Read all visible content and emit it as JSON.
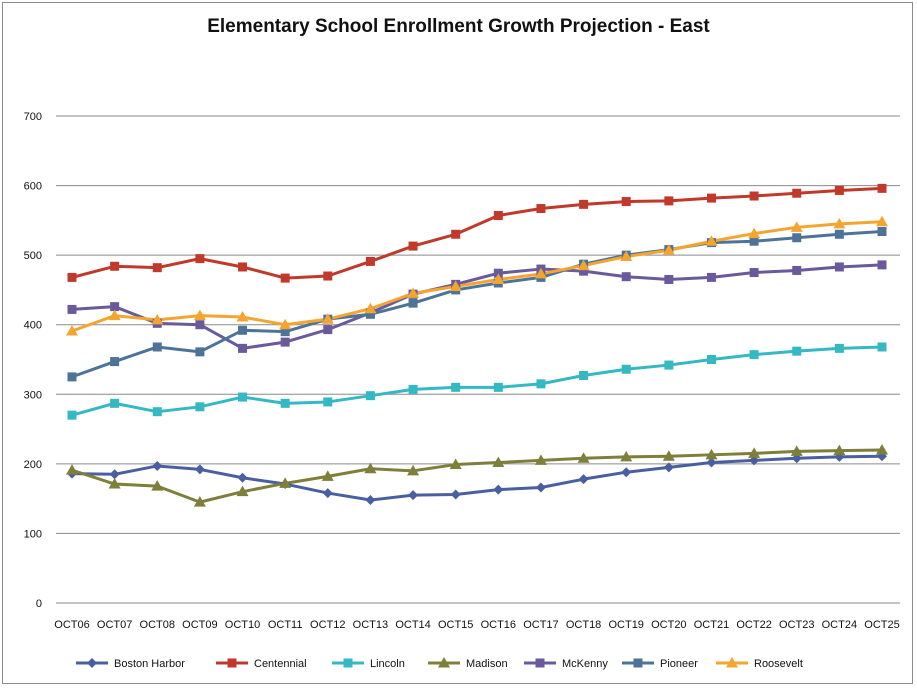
{
  "chart_data": {
    "type": "line",
    "title": "Elementary School Enrollment Growth Projection - East",
    "xlabel": "",
    "ylabel": "",
    "ylim": [
      0,
      700
    ],
    "yticks": [
      0,
      100,
      200,
      300,
      400,
      500,
      600,
      700
    ],
    "grid": true,
    "legend_position": "bottom",
    "x": [
      "OCT06",
      "OCT07",
      "OCT08",
      "OCT09",
      "OCT10",
      "OCT11",
      "OCT12",
      "OCT13",
      "OCT14",
      "OCT15",
      "OCT16",
      "OCT17",
      "OCT18",
      "OCT19",
      "OCT20",
      "OCT21",
      "OCT22",
      "OCT23",
      "OCT24",
      "OCT25"
    ],
    "series": [
      {
        "name": "Boston Harbor",
        "color": "#4a5fa0",
        "marker": "diamond",
        "values": [
          186,
          185,
          197,
          192,
          180,
          171,
          158,
          148,
          155,
          156,
          163,
          166,
          178,
          188,
          195,
          202,
          205,
          208,
          210,
          211
        ]
      },
      {
        "name": "Centennial",
        "color": "#c0392b",
        "marker": "square",
        "values": [
          468,
          484,
          482,
          495,
          483,
          467,
          470,
          491,
          513,
          530,
          557,
          567,
          573,
          577,
          578,
          582,
          585,
          589,
          593,
          596
        ]
      },
      {
        "name": "Lincoln",
        "color": "#33b8c4",
        "marker": "square",
        "values": [
          270,
          287,
          275,
          282,
          296,
          287,
          289,
          298,
          307,
          310,
          310,
          315,
          327,
          336,
          342,
          350,
          357,
          362,
          366,
          368
        ]
      },
      {
        "name": "Madison",
        "color": "#7d7f3a",
        "marker": "triangle",
        "values": [
          191,
          171,
          168,
          145,
          160,
          172,
          182,
          193,
          190,
          199,
          202,
          205,
          208,
          210,
          211,
          213,
          215,
          218,
          219,
          220
        ]
      },
      {
        "name": "McKenny",
        "color": "#6a5a9c",
        "marker": "square",
        "values": [
          422,
          426,
          402,
          400,
          366,
          375,
          393,
          417,
          444,
          458,
          474,
          480,
          477,
          469,
          465,
          468,
          475,
          478,
          483,
          486
        ]
      },
      {
        "name": "Pioneer",
        "color": "#4d7398",
        "marker": "square",
        "values": [
          325,
          347,
          368,
          361,
          392,
          390,
          408,
          415,
          431,
          450,
          460,
          468,
          487,
          500,
          508,
          518,
          520,
          525,
          530,
          534
        ]
      },
      {
        "name": "Roosevelt",
        "color": "#f4a52f",
        "marker": "triangle",
        "values": [
          391,
          413,
          407,
          413,
          411,
          400,
          408,
          423,
          445,
          455,
          465,
          473,
          485,
          498,
          507,
          520,
          531,
          540,
          545,
          548
        ]
      }
    ]
  }
}
